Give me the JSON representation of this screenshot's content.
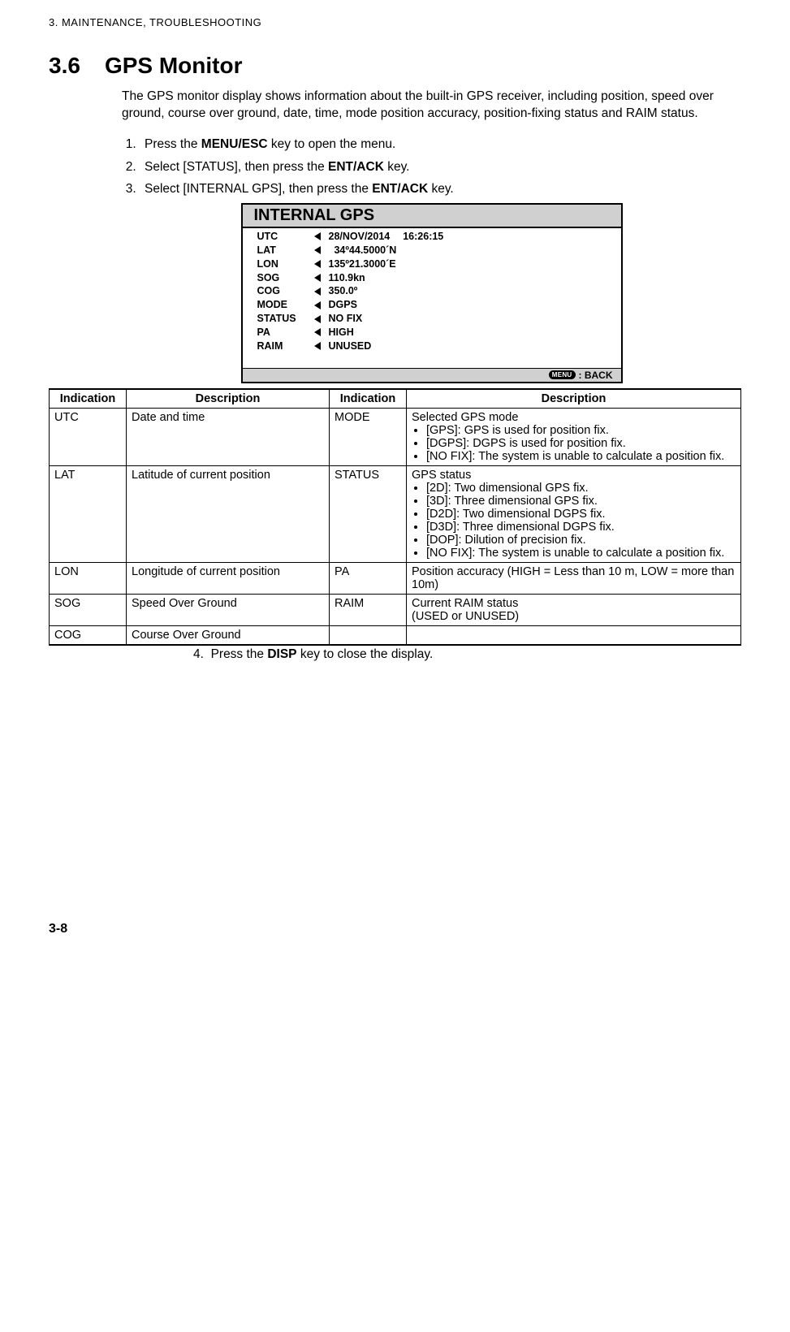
{
  "header": "3.  MAINTENANCE, TROUBLESHOOTING",
  "section": {
    "num": "3.6",
    "title": "GPS Monitor"
  },
  "intro": "The GPS monitor display shows information about the built-in GPS receiver, including position, speed over ground, course over ground, date, time, mode position accuracy, position-fixing status and RAIM status.",
  "steps": [
    {
      "pre": "Press the ",
      "bold": "MENU/ESC",
      "post": " key to open the menu."
    },
    {
      "pre": "Select [STATUS], then press the ",
      "bold": "ENT/ACK",
      "post": " key."
    },
    {
      "pre": "Select [INTERNAL GPS], then press the ",
      "bold": "ENT/ACK",
      "post": " key."
    }
  ],
  "gps": {
    "title": "INTERNAL GPS",
    "rows": [
      {
        "label": "UTC",
        "value": "28/NOV/2014  16:26:15"
      },
      {
        "label": "LAT",
        "value": "  34º44.5000´N"
      },
      {
        "label": "LON",
        "value": "135º21.3000´E"
      },
      {
        "label": "SOG",
        "value": "110.9kn"
      },
      {
        "label": "COG",
        "value": "350.0º"
      },
      {
        "label": "MODE",
        "value": "DGPS"
      },
      {
        "label": "STATUS",
        "value": "NO FIX"
      },
      {
        "label": "PA",
        "value": "HIGH"
      },
      {
        "label": "RAIM",
        "value": "UNUSED"
      }
    ],
    "footer_menu": "MENU",
    "footer_back": ": BACK"
  },
  "table": {
    "headers": [
      "Indication",
      "Description",
      "Indication",
      "Description"
    ],
    "rows": [
      {
        "ind1": "UTC",
        "desc1": "Date and time",
        "ind2": "MODE",
        "desc2_lead": "Selected GPS mode",
        "desc2_list": [
          "[GPS]: GPS is used for position fix.",
          "[DGPS]: DGPS is used for position fix.",
          "[NO FIX]: The system is unable to calculate a position fix."
        ]
      },
      {
        "ind1": "LAT",
        "desc1": "Latitude of current position",
        "ind2": "STATUS",
        "desc2_lead": "GPS status",
        "desc2_list": [
          "[2D]: Two dimensional GPS fix.",
          "[3D]: Three dimensional GPS fix.",
          "[D2D]: Two dimensional DGPS fix.",
          "[D3D]: Three dimensional DGPS fix.",
          "[DOP]: Dilution of precision fix.",
          "[NO FIX]: The system is unable to calculate a position fix."
        ]
      },
      {
        "ind1": "LON",
        "desc1": "Longitude of current position",
        "ind2": "PA",
        "desc2_plain": "Position accuracy (HIGH = Less than 10 m, LOW = more than 10m)"
      },
      {
        "ind1": "SOG",
        "desc1": "Speed Over Ground",
        "ind2": "RAIM",
        "desc2_plain": "Current RAIM status\n(USED or UNUSED)"
      },
      {
        "ind1": "COG",
        "desc1": "Course Over Ground",
        "ind2": "",
        "desc2_plain": ""
      }
    ]
  },
  "after_table": {
    "num": "4.",
    "pre": "Press the ",
    "bold": "DISP",
    "post": " key to close the display."
  },
  "page_num": "3-8"
}
